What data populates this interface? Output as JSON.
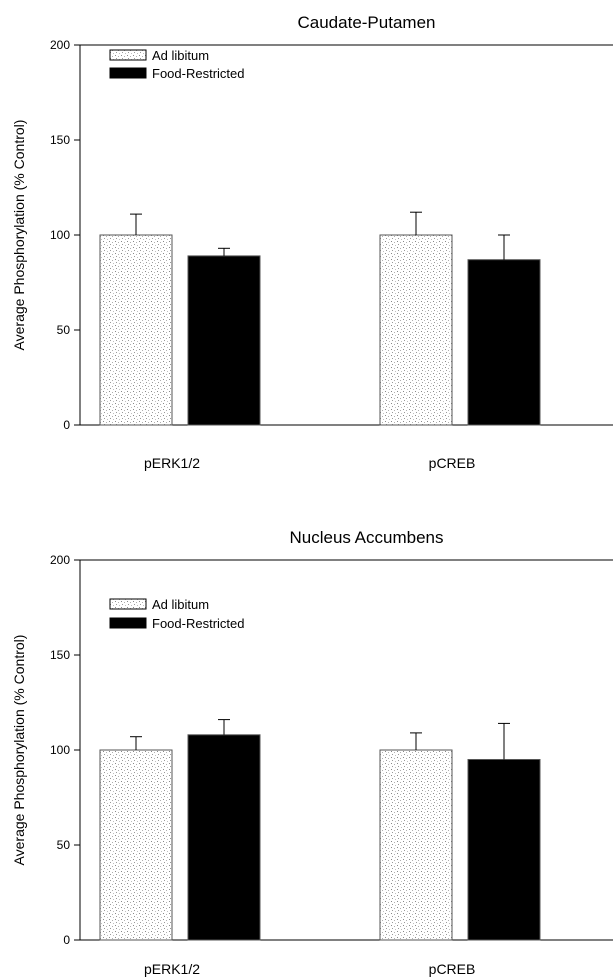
{
  "chart_data": [
    {
      "type": "bar",
      "title": "Caudate-Putamen",
      "xlabel": "",
      "ylabel": "Average Phosphorylation (% Control)",
      "ylim": [
        0,
        200
      ],
      "yticks": [
        0,
        50,
        100,
        150,
        200
      ],
      "categories": [
        "pERK1/2",
        "pCREB"
      ],
      "series": [
        {
          "name": "Ad libitum",
          "values": [
            100,
            100
          ],
          "errors": [
            11,
            12
          ],
          "fill": "stipple"
        },
        {
          "name": "Food-Restricted",
          "values": [
            89,
            87
          ],
          "errors": [
            4,
            13
          ],
          "fill": "#000000"
        }
      ],
      "legend_position": "top-left",
      "grid": false
    },
    {
      "type": "bar",
      "title": "Nucleus Accumbens",
      "xlabel": "",
      "ylabel": "Average Phosphorylation (% Control)",
      "ylim": [
        0,
        200
      ],
      "yticks": [
        0,
        50,
        100,
        150,
        200
      ],
      "categories": [
        "pERK1/2",
        "pCREB"
      ],
      "series": [
        {
          "name": "Ad libitum",
          "values": [
            100,
            100
          ],
          "errors": [
            7,
            9
          ],
          "fill": "stipple"
        },
        {
          "name": "Food-Restricted",
          "values": [
            108,
            95
          ],
          "errors": [
            8,
            19
          ],
          "fill": "#000000"
        }
      ],
      "legend_position": "top-left",
      "grid": false
    }
  ]
}
